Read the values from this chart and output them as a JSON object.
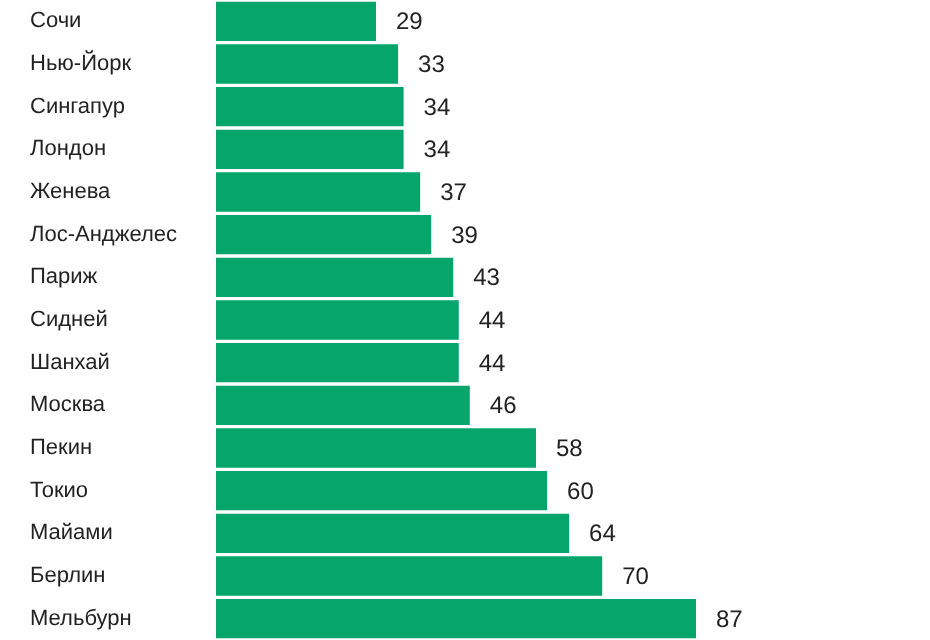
{
  "chart_data": {
    "type": "bar",
    "orientation": "horizontal",
    "categories": [
      "Сочи",
      "Нью-Йорк",
      "Сингапур",
      "Лондон",
      "Женева",
      "Лос-Анджелес",
      "Париж",
      "Сидней",
      "Шанхай",
      "Москва",
      "Пекин",
      "Токио",
      "Майами",
      "Берлин",
      "Мельбурн"
    ],
    "values": [
      29,
      33,
      34,
      34,
      37,
      39,
      43,
      44,
      44,
      46,
      58,
      60,
      64,
      70,
      87
    ],
    "color": "#05a56b",
    "data_labels": true
  }
}
